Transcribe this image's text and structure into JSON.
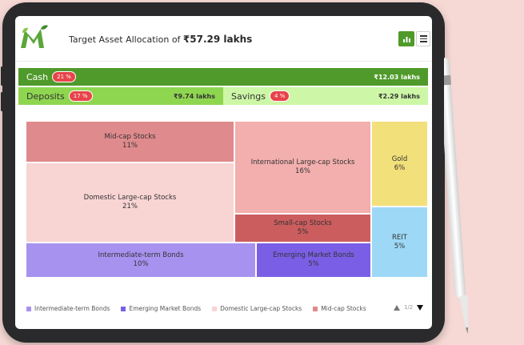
{
  "header": {
    "title_prefix": "Target Asset Allocation of",
    "title_amount": "₹57.29 lakhs",
    "chart_button_icon": "bar-chart-icon",
    "menu_button_icon": "hamburger-icon"
  },
  "summary": {
    "cash": {
      "label": "Cash",
      "pct": "21 %",
      "amount": "₹12.03 lakhs",
      "color": "#4f9a2a"
    },
    "deposits": {
      "label": "Deposits",
      "pct": "17 %",
      "amount": "₹9.74 lakhs",
      "color": "#8fd650"
    },
    "savings": {
      "label": "Savings",
      "pct": "4 %",
      "amount": "₹2.29 lakhs",
      "color": "#cdf7a6"
    }
  },
  "chart_data": {
    "type": "treemap",
    "items": [
      {
        "name": "Mid-cap Stocks",
        "value": 11,
        "label": "11%",
        "color": "#df8a8c"
      },
      {
        "name": "Domestic Large-cap Stocks",
        "value": 21,
        "label": "21%",
        "color": "#f8d4d3"
      },
      {
        "name": "International Large-cap Stocks",
        "value": 16,
        "label": "16%",
        "color": "#f2afad"
      },
      {
        "name": "Small-cap Stocks",
        "value": 5,
        "label": "5%",
        "color": "#cb5d5e"
      },
      {
        "name": "Gold",
        "value": 6,
        "label": "6%",
        "color": "#f2e07a"
      },
      {
        "name": "REIT",
        "value": 5,
        "label": "5%",
        "color": "#9dd9f7"
      },
      {
        "name": "Intermediate-term Bonds",
        "value": 10,
        "label": "10%",
        "color": "#a792f0"
      },
      {
        "name": "Emerging Market Bonds",
        "value": 5,
        "label": "5%",
        "color": "#7a5fe6"
      }
    ],
    "legend": [
      {
        "name": "Intermediate-term Bonds",
        "color": "#a792f0"
      },
      {
        "name": "Emerging Market Bonds",
        "color": "#7a5fe6"
      },
      {
        "name": "Domestic Large-cap Stocks",
        "color": "#f8d4d3"
      },
      {
        "name": "Mid-cap Stocks",
        "color": "#df8a8c"
      }
    ]
  },
  "pager": {
    "text": "1/2"
  }
}
